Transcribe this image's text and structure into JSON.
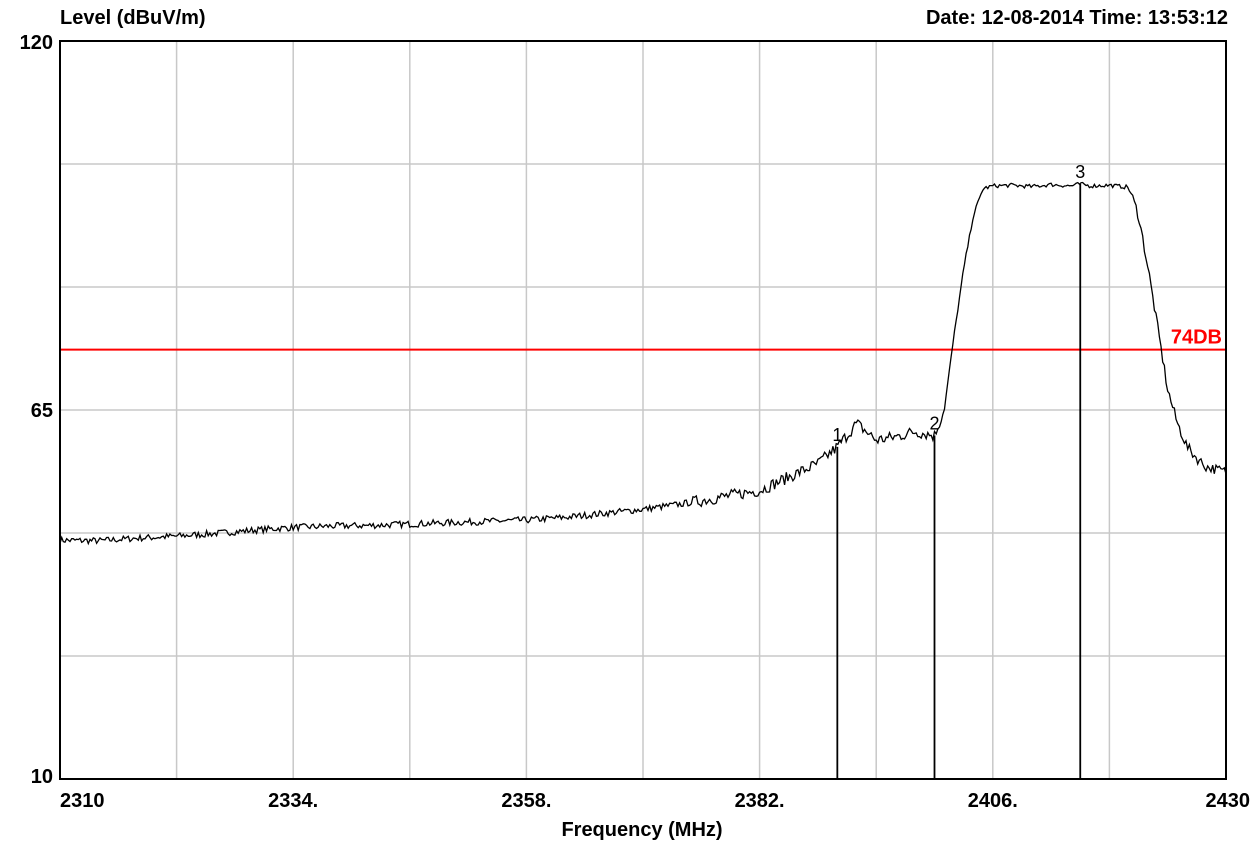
{
  "header": {
    "ylabel": "Level (dBuV/m)",
    "date_time": "Date: 12-08-2014  Time: 13:53:12"
  },
  "colors": {
    "background": "#ffffff",
    "grid": "#c8c8c8",
    "trace": "#000000",
    "limit": "#ff0000"
  },
  "chart_data": {
    "type": "line",
    "title": "",
    "xlabel": "Frequency (MHz)",
    "ylabel": "Level (dBuV/m)",
    "xlim": [
      2310,
      2430
    ],
    "ylim": [
      10,
      120
    ],
    "grid": true,
    "x_ticks": [
      {
        "value": 2310,
        "label": "2310"
      },
      {
        "value": 2334,
        "label": "2334."
      },
      {
        "value": 2358,
        "label": "2358."
      },
      {
        "value": 2382,
        "label": "2382."
      },
      {
        "value": 2406,
        "label": "2406."
      },
      {
        "value": 2430,
        "label": "2430"
      }
    ],
    "y_ticks": [
      {
        "value": 10,
        "label": "10"
      },
      {
        "value": 65,
        "label": "65"
      },
      {
        "value": 120,
        "label": "120"
      }
    ],
    "x_gridlines": [
      2310,
      2322,
      2334,
      2346,
      2358,
      2370,
      2382,
      2394,
      2406,
      2418,
      2430
    ],
    "y_gridlines": [
      10,
      28.33,
      46.67,
      65,
      83.33,
      101.67,
      120
    ],
    "limit_line": {
      "value": 74,
      "label": "74DB"
    },
    "markers": [
      {
        "label": "1",
        "x": 2390,
        "y": 59.5
      },
      {
        "label": "2",
        "x": 2400,
        "y": 61.2
      },
      {
        "label": "3",
        "x": 2415,
        "y": 98.7
      }
    ],
    "series": [
      {
        "x": [
          2310,
          2314,
          2318,
          2322,
          2326,
          2330,
          2334,
          2338,
          2342,
          2346,
          2350,
          2354,
          2358,
          2362,
          2366,
          2370,
          2374,
          2378,
          2382,
          2385,
          2388,
          2390,
          2392,
          2394,
          2396,
          2398,
          2400,
          2401,
          2402,
          2403,
          2404,
          2405,
          2406,
          2408,
          2410,
          2412,
          2414,
          2415,
          2416,
          2418,
          2420,
          2421,
          2422,
          2423,
          2424,
          2425,
          2426,
          2427,
          2428,
          2430
        ],
        "values": [
          45.6,
          45.5,
          45.9,
          46.2,
          46.6,
          47.1,
          47.5,
          47.7,
          47.8,
          48.0,
          48.2,
          48.4,
          48.6,
          49.0,
          49.6,
          50.2,
          51.0,
          52.0,
          53.0,
          55.0,
          57.0,
          59.5,
          63.0,
          60.5,
          61.0,
          61.8,
          61.2,
          65.0,
          76.0,
          86.0,
          94.0,
          98.0,
          98.4,
          98.5,
          98.3,
          98.6,
          98.4,
          98.7,
          98.4,
          98.5,
          98.2,
          94.0,
          86.0,
          77.0,
          68.0,
          63.0,
          59.5,
          57.8,
          56.5,
          55.8
        ]
      }
    ]
  }
}
